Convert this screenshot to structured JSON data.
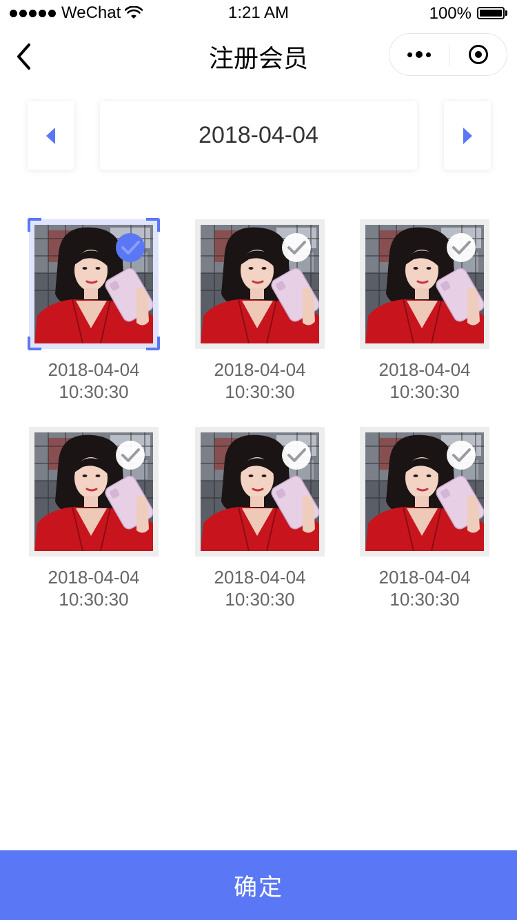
{
  "status_bar": {
    "carrier": "WeChat",
    "time": "1:21 AM",
    "battery": "100%",
    "battery_level": 1.0
  },
  "nav": {
    "title": "注册会员",
    "back_icon": "chevron-left-icon",
    "more_icon": "more-dots-icon",
    "close_icon": "target-ring-icon"
  },
  "date_selector": {
    "prev_icon": "triangle-left-icon",
    "next_icon": "triangle-right-icon",
    "current_date": "2018-04-04"
  },
  "photos": [
    {
      "date": "2018-04-04",
      "time": "10:30:30",
      "selected": true
    },
    {
      "date": "2018-04-04",
      "time": "10:30:30",
      "selected": false
    },
    {
      "date": "2018-04-04",
      "time": "10:30:30",
      "selected": false
    },
    {
      "date": "2018-04-04",
      "time": "10:30:30",
      "selected": false
    },
    {
      "date": "2018-04-04",
      "time": "10:30:30",
      "selected": false
    },
    {
      "date": "2018-04-04",
      "time": "10:30:30",
      "selected": false
    }
  ],
  "confirm_label": "确定",
  "colors": {
    "accent": "#5a77f5",
    "caption": "#666666",
    "background": "#ffffff"
  }
}
